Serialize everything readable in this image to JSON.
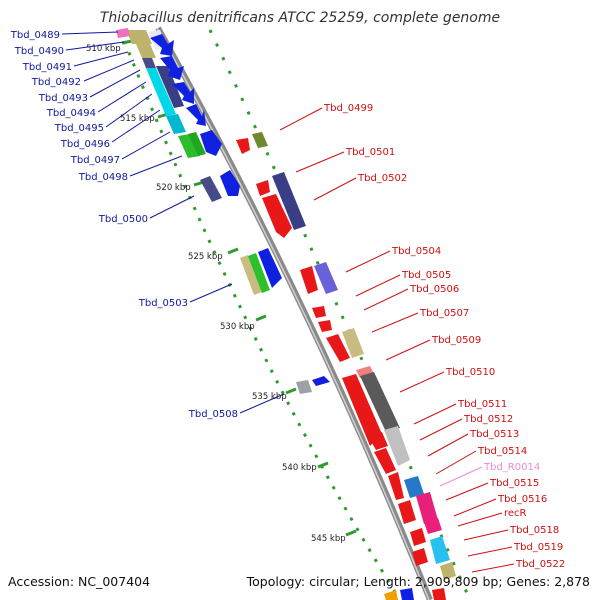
{
  "title": "Thiobacillus denitrificans ATCC 25259, complete genome",
  "footer": {
    "accession": "Accession: NC_007404",
    "summary": "Topology: circular; Length: 2,909,809 bp; Genes: 2,878"
  },
  "colors": {
    "backbone": "#8a8a8a",
    "tick_green": "#2f9a2f",
    "left_label": "#10189c",
    "right_label": "#cc1010",
    "rna_label": "#e98bd8"
  },
  "kbp_marks": [
    "510 kbp",
    "515 kbp",
    "520 kbp",
    "525 kbp",
    "530 kbp",
    "535 kbp",
    "540 kbp",
    "545 kbp"
  ],
  "left_genes": [
    "Tbd_0489",
    "Tbd_0490",
    "Tbd_0491",
    "Tbd_0492",
    "Tbd_0493",
    "Tbd_0494",
    "Tbd_0495",
    "Tbd_0496",
    "Tbd_0497",
    "Tbd_0498",
    "Tbd_0500",
    "Tbd_0503",
    "Tbd_0508"
  ],
  "right_genes": [
    "Tbd_0499",
    "Tbd_0501",
    "Tbd_0502",
    "Tbd_0504",
    "Tbd_0505",
    "Tbd_0506",
    "Tbd_0507",
    "Tbd_0509",
    "Tbd_0510",
    "Tbd_0511",
    "Tbd_0512",
    "Tbd_0513",
    "Tbd_0514",
    "Tbd_R0014",
    "Tbd_0515",
    "Tbd_0516",
    "recR",
    "Tbd_0518",
    "Tbd_0519",
    "Tbd_0522"
  ]
}
